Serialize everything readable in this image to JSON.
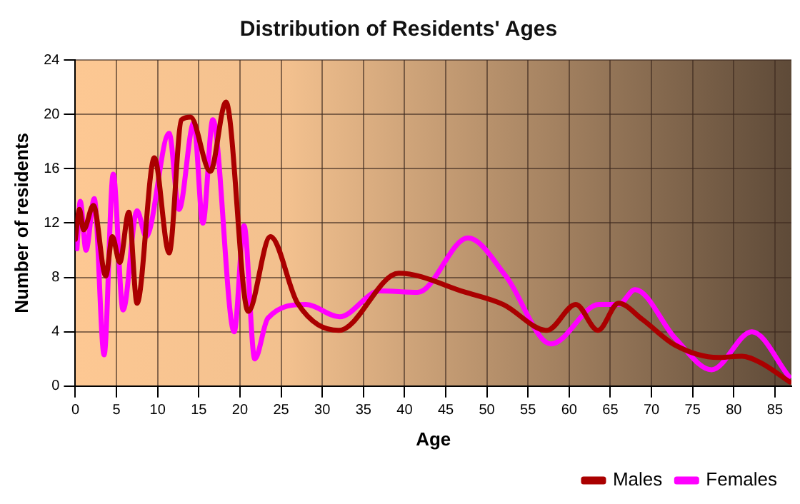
{
  "chart_data": {
    "type": "line",
    "title": "Distribution of Residents' Ages",
    "xlabel": "Age",
    "ylabel": "Number of residents",
    "xlim": [
      0,
      87
    ],
    "xticks": [
      0,
      5,
      10,
      15,
      20,
      25,
      30,
      35,
      40,
      45,
      50,
      55,
      60,
      65,
      70,
      75,
      80,
      85
    ],
    "ylim": [
      0,
      24
    ],
    "yticks": [
      0,
      4,
      8,
      12,
      16,
      20,
      24
    ],
    "grid": true,
    "legend": "bottom right",
    "marker": "none",
    "line_style": "solid",
    "series": [
      {
        "name": "Males",
        "color": "#aa0000",
        "x": [
          0,
          0.5,
          1,
          2.2,
          3.7,
          4.5,
          5.4,
          6.5,
          7.5,
          9.6,
          11.4,
          12.9,
          14,
          16.4,
          18.3,
          21,
          23.7,
          27,
          32,
          39.3,
          47.4,
          52,
          57.3,
          60.8,
          63.5,
          66,
          68.9,
          72.9,
          78.1,
          81,
          83.3,
          86.8
        ],
        "values": [
          10.8,
          13,
          11.5,
          13.3,
          8.1,
          11,
          9.1,
          12.8,
          6.1,
          16.8,
          9.8,
          19.6,
          19.8,
          15.8,
          20.9,
          5.5,
          11,
          6.1,
          4.1,
          8.3,
          6.9,
          6,
          4.1,
          6,
          4.1,
          6.1,
          4.9,
          3,
          2.1,
          2.2,
          1.7,
          0.3
        ]
      },
      {
        "name": "Females",
        "color": "#ff00ff",
        "x": [
          0.2,
          0.6,
          1.3,
          2.3,
          3.5,
          4.6,
          5.8,
          7.5,
          8.6,
          11.4,
          12.6,
          14.4,
          15.5,
          16.7,
          19.3,
          20.5,
          21.8,
          23.4,
          28,
          32.1,
          37,
          41.6,
          47.7,
          52.3,
          57.8,
          63.6,
          66,
          68,
          72.9,
          77.3,
          82.2,
          86.7
        ],
        "values": [
          10.1,
          13.6,
          10,
          13.8,
          2.3,
          15.6,
          5.6,
          12.9,
          11,
          18.6,
          13,
          19.4,
          12,
          19.6,
          4,
          11.8,
          2,
          5,
          6,
          5.1,
          7,
          6.9,
          10.9,
          8.1,
          3.1,
          6,
          6,
          7.1,
          3.5,
          1.2,
          4,
          0.7
        ]
      }
    ]
  }
}
